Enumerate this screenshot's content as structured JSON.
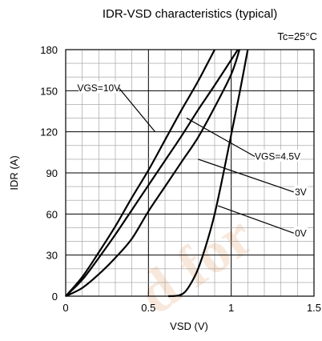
{
  "chart_data": {
    "type": "line",
    "title": "IDR-VSD characteristics (typical)",
    "condition": "Tc=25°C",
    "xlabel": "VSD (V)",
    "ylabel": "IDR (A)",
    "xlim": [
      0,
      1.5
    ],
    "ylim": [
      0,
      180
    ],
    "x_ticks": [
      "0",
      "0.5",
      "1",
      "1.5"
    ],
    "y_ticks": [
      "0",
      "30",
      "60",
      "90",
      "120",
      "150",
      "180"
    ],
    "grid": true,
    "watermark": "d for",
    "series": [
      {
        "name": "VGS=10V",
        "color": "#000000",
        "points": [
          [
            0,
            0
          ],
          [
            0.1,
            14
          ],
          [
            0.2,
            32
          ],
          [
            0.3,
            51
          ],
          [
            0.4,
            72
          ],
          [
            0.5,
            92
          ],
          [
            0.6,
            114
          ],
          [
            0.7,
            136
          ],
          [
            0.8,
            157
          ],
          [
            0.9,
            180
          ]
        ]
      },
      {
        "name": "VGS=4.5V",
        "color": "#000000",
        "points": [
          [
            0,
            0
          ],
          [
            0.1,
            12
          ],
          [
            0.2,
            28
          ],
          [
            0.3,
            45
          ],
          [
            0.4,
            63
          ],
          [
            0.5,
            81
          ],
          [
            0.6,
            99
          ],
          [
            0.7,
            117
          ],
          [
            0.8,
            136
          ],
          [
            0.9,
            154
          ],
          [
            1.04,
            180
          ]
        ]
      },
      {
        "name": "3V",
        "color": "#000000",
        "points": [
          [
            0,
            0
          ],
          [
            0.1,
            6
          ],
          [
            0.2,
            16
          ],
          [
            0.3,
            28
          ],
          [
            0.4,
            42
          ],
          [
            0.5,
            62
          ],
          [
            0.6,
            80
          ],
          [
            0.7,
            98
          ],
          [
            0.8,
            116
          ],
          [
            0.9,
            138
          ],
          [
            1.0,
            162
          ],
          [
            1.05,
            180
          ]
        ]
      },
      {
        "name": "0V",
        "color": "#000000",
        "points": [
          [
            0.62,
            0
          ],
          [
            0.68,
            0.5
          ],
          [
            0.72,
            3
          ],
          [
            0.76,
            10
          ],
          [
            0.8,
            20
          ],
          [
            0.85,
            38
          ],
          [
            0.9,
            60
          ],
          [
            0.95,
            88
          ],
          [
            1.0,
            118
          ],
          [
            1.05,
            148
          ],
          [
            1.1,
            180
          ]
        ]
      }
    ],
    "annotations": [
      {
        "text": "VGS=10V",
        "label_at": [
          0.2,
          152
        ],
        "points_to": [
          0.54,
          120
        ]
      },
      {
        "text": "VGS=4.5V",
        "label_at": [
          1.28,
          102
        ],
        "points_to": [
          0.73,
          130
        ]
      },
      {
        "text": "3V",
        "label_at": [
          1.42,
          76
        ],
        "points_to": [
          0.8,
          100
        ]
      },
      {
        "text": "0V",
        "label_at": [
          1.42,
          46
        ],
        "points_to": [
          0.92,
          66
        ]
      }
    ]
  }
}
